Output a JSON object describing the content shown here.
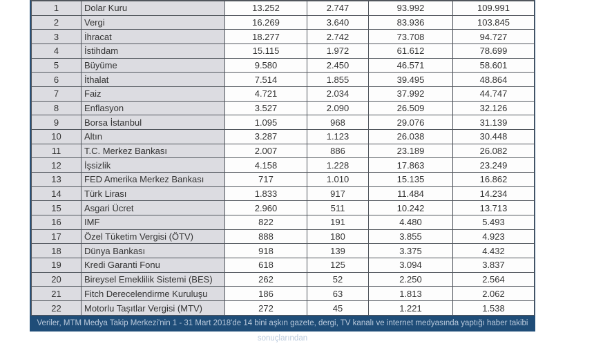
{
  "table": {
    "rows": [
      [
        "1",
        "Dolar Kuru",
        "13.252",
        "2.747",
        "93.992",
        "109.991"
      ],
      [
        "2",
        "Vergi",
        "16.269",
        "3.640",
        "83.936",
        "103.845"
      ],
      [
        "3",
        "İhracat",
        "18.277",
        "2.742",
        "73.708",
        "94.727"
      ],
      [
        "4",
        "İstihdam",
        "15.115",
        "1.972",
        "61.612",
        "78.699"
      ],
      [
        "5",
        "Büyüme",
        "9.580",
        "2.450",
        "46.571",
        "58.601"
      ],
      [
        "6",
        "İthalat",
        "7.514",
        "1.855",
        "39.495",
        "48.864"
      ],
      [
        "7",
        "Faiz",
        "4.721",
        "2.034",
        "37.992",
        "44.747"
      ],
      [
        "8",
        "Enflasyon",
        "3.527",
        "2.090",
        "26.509",
        "32.126"
      ],
      [
        "9",
        "Borsa İstanbul",
        "1.095",
        "968",
        "29.076",
        "31.139"
      ],
      [
        "10",
        "Altın",
        "3.287",
        "1.123",
        "26.038",
        "30.448"
      ],
      [
        "11",
        "T.C. Merkez Bankası",
        "2.007",
        "886",
        "23.189",
        "26.082"
      ],
      [
        "12",
        "İşsizlik",
        "4.158",
        "1.228",
        "17.863",
        "23.249"
      ],
      [
        "13",
        "FED Amerika Merkez Bankası",
        "717",
        "1.010",
        "15.135",
        "16.862"
      ],
      [
        "14",
        "Türk Lirası",
        "1.833",
        "917",
        "11.484",
        "14.234"
      ],
      [
        "15",
        "Asgari Ücret",
        "2.960",
        "511",
        "10.242",
        "13.713"
      ],
      [
        "16",
        "IMF",
        "822",
        "191",
        "4.480",
        "5.493"
      ],
      [
        "17",
        "Özel Tüketim Vergisi (ÖTV)",
        "888",
        "180",
        "3.855",
        "4.923"
      ],
      [
        "18",
        "Dünya Bankası",
        "918",
        "139",
        "3.375",
        "4.432"
      ],
      [
        "19",
        "Kredi Garanti Fonu",
        "618",
        "125",
        "3.094",
        "3.837"
      ],
      [
        "20",
        "Bireysel Emeklilik Sistemi (BES)",
        "262",
        "52",
        "2.250",
        "2.564"
      ],
      [
        "21",
        "Fitch Derecelendirme Kuruluşu",
        "186",
        "63",
        "1.813",
        "2.062"
      ],
      [
        "22",
        "Motorlu Taşıtlar Vergisi (MTV)",
        "272",
        "45",
        "1.221",
        "1.538"
      ]
    ]
  },
  "footer": {
    "text": "Veriler, MTM Medya Takip Merkezi'nin 1 - 31 Mart 2018'de 14 bini aşkın gazete, dergi, TV kanalı ve internet medyasında yaptığı haber takibi sonuçlarından"
  },
  "colors": {
    "outer_border": "#2b5279",
    "cell_border": "#50555c",
    "label_bg": "#dcdce1",
    "value_bg": "#fdfdfd",
    "text": "#333333",
    "footer_bg": "#1f4d78",
    "footer_text": "#b9c9dc"
  }
}
